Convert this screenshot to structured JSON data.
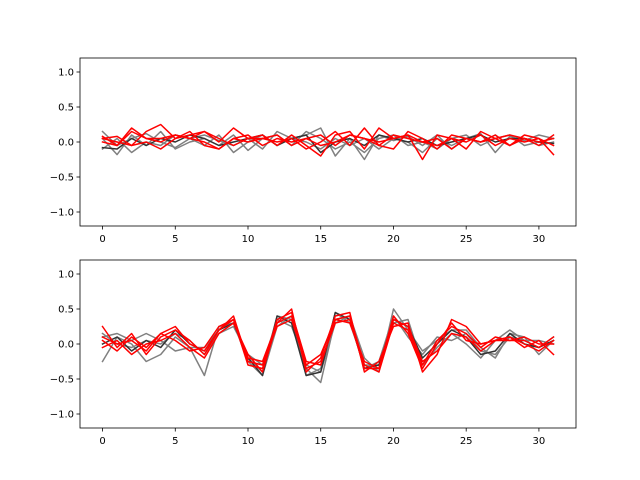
{
  "chart_data": [
    {
      "type": "line",
      "title": "",
      "xlabel": "",
      "ylabel": "",
      "xlim": [
        -1.55,
        32.55
      ],
      "ylim": [
        -1.2,
        1.2
      ],
      "xticks": [
        0,
        5,
        10,
        15,
        20,
        25,
        30
      ],
      "yticks": [
        -1.0,
        -0.5,
        0.0,
        0.5,
        1.0
      ],
      "xtick_labels": [
        "0",
        "5",
        "10",
        "15",
        "20",
        "25",
        "30"
      ],
      "ytick_labels": [
        "−1.0",
        "−0.5",
        "0.0",
        "0.5",
        "1.0"
      ],
      "grid": false,
      "x": [
        0,
        1,
        2,
        3,
        4,
        5,
        6,
        7,
        8,
        9,
        10,
        11,
        12,
        13,
        14,
        15,
        16,
        17,
        18,
        19,
        20,
        21,
        22,
        23,
        24,
        25,
        26,
        27,
        28,
        29,
        30,
        31
      ],
      "series": [
        {
          "color": "#808080",
          "values": [
            0.15,
            -0.05,
            0.05,
            0.12,
            0.0,
            -0.08,
            0.05,
            0.1,
            0.02,
            -0.05,
            0.05,
            -0.1,
            0.15,
            0.05,
            0.1,
            0.2,
            -0.2,
            0.05,
            -0.25,
            0.1,
            0.02,
            0.08,
            -0.05,
            0.1,
            -0.1,
            0.05,
            0.12,
            -0.15,
            0.08,
            0.02,
            0.1,
            0.05
          ]
        },
        {
          "color": "#808080",
          "values": [
            0.05,
            -0.18,
            0.1,
            -0.05,
            0.15,
            -0.1,
            0.0,
            0.05,
            -0.05,
            0.1,
            -0.12,
            0.05,
            0.1,
            -0.05,
            0.15,
            0.05,
            -0.1,
            0.0,
            -0.15,
            0.05,
            0.1,
            -0.05,
            0.0,
            -0.1,
            0.05,
            0.1,
            -0.05,
            0.05,
            0.1,
            -0.05,
            0.0,
            0.05
          ]
        },
        {
          "color": "#808080",
          "values": [
            -0.1,
            0.05,
            -0.15,
            0.0,
            -0.05,
            0.1,
            0.05,
            -0.05,
            0.1,
            -0.15,
            0.0,
            0.1,
            -0.05,
            0.05,
            0.0,
            -0.1,
            0.05,
            -0.05,
            0.05,
            -0.1,
            0.05,
            0.0,
            -0.15,
            0.05,
            -0.05,
            0.05,
            0.0,
            0.1,
            -0.05,
            0.05,
            -0.05,
            0.0
          ]
        },
        {
          "color": "#333333",
          "values": [
            -0.08,
            -0.1,
            0.05,
            -0.05,
            0.05,
            0.0,
            0.1,
            0.05,
            -0.05,
            0.0,
            0.05,
            0.1,
            -0.05,
            0.05,
            0.1,
            -0.15,
            0.0,
            0.05,
            -0.05,
            0.1,
            0.05,
            0.0,
            0.05,
            -0.05,
            0.0,
            0.05,
            0.1,
            0.0,
            0.05,
            0.05,
            0.0,
            -0.02
          ]
        },
        {
          "color": "#ff0000",
          "values": [
            0.05,
            0.08,
            -0.05,
            0.15,
            0.25,
            0.05,
            0.1,
            0.15,
            0.0,
            0.2,
            0.05,
            0.1,
            -0.05,
            0.1,
            -0.05,
            -0.2,
            0.1,
            0.15,
            -0.1,
            0.2,
            0.05,
            0.1,
            -0.25,
            0.1,
            0.05,
            -0.1,
            0.15,
            0.05,
            0.1,
            0.05,
            -0.05,
            0.1
          ]
        },
        {
          "color": "#ff0000",
          "values": [
            0.0,
            -0.05,
            0.15,
            0.05,
            0.0,
            0.1,
            0.05,
            0.0,
            -0.1,
            0.05,
            0.1,
            -0.05,
            0.05,
            0.0,
            0.05,
            0.1,
            -0.05,
            0.1,
            0.05,
            -0.05,
            0.1,
            0.05,
            0.0,
            0.05,
            -0.1,
            0.05,
            0.0,
            0.05,
            -0.05,
            0.1,
            0.05,
            -0.05
          ]
        },
        {
          "color": "#ff0000",
          "values": [
            0.05,
            0.0,
            -0.05,
            0.0,
            -0.1,
            0.05,
            0.15,
            -0.05,
            -0.1,
            0.05,
            0.0,
            0.05,
            0.1,
            -0.05,
            0.05,
            -0.05,
            0.0,
            0.1,
            0.05,
            0.0,
            0.05,
            0.1,
            0.0,
            -0.05,
            0.05,
            0.0,
            0.1,
            -0.05,
            0.05,
            0.0,
            0.05,
            -0.18
          ]
        },
        {
          "color": "#ff0000",
          "values": [
            0.08,
            -0.05,
            0.2,
            0.05,
            0.05,
            0.1,
            0.05,
            0.15,
            0.05,
            -0.05,
            0.05,
            0.05,
            0.0,
            0.05,
            -0.1,
            0.0,
            0.15,
            -0.05,
            0.2,
            -0.05,
            -0.1,
            0.15,
            0.05,
            -0.1,
            0.1,
            0.05,
            0.0,
            0.1,
            -0.05,
            0.05,
            0.0,
            0.05
          ]
        }
      ]
    },
    {
      "type": "line",
      "title": "",
      "xlabel": "",
      "ylabel": "",
      "xlim": [
        -1.55,
        32.55
      ],
      "ylim": [
        -1.2,
        1.2
      ],
      "xticks": [
        0,
        5,
        10,
        15,
        20,
        25,
        30
      ],
      "yticks": [
        -1.0,
        -0.5,
        0.0,
        0.5,
        1.0
      ],
      "xtick_labels": [
        "0",
        "5",
        "10",
        "15",
        "20",
        "25",
        "30"
      ],
      "ytick_labels": [
        "−1.0",
        "−0.5",
        "0.0",
        "0.5",
        "1.0"
      ],
      "grid": false,
      "x": [
        0,
        1,
        2,
        3,
        4,
        5,
        6,
        7,
        8,
        9,
        10,
        11,
        12,
        13,
        14,
        15,
        16,
        17,
        18,
        19,
        20,
        21,
        22,
        23,
        24,
        25,
        26,
        27,
        28,
        29,
        30,
        31
      ],
      "series": [
        {
          "color": "#808080",
          "values": [
            0.1,
            0.15,
            0.05,
            0.15,
            0.05,
            -0.1,
            -0.05,
            -0.45,
            0.25,
            0.3,
            -0.25,
            -0.45,
            0.25,
            0.4,
            -0.35,
            -0.55,
            0.35,
            0.4,
            -0.2,
            -0.4,
            0.5,
            0.2,
            -0.1,
            0.05,
            0.2,
            0.2,
            -0.05,
            -0.2,
            0.15,
            0.1,
            -0.15,
            0.05
          ]
        },
        {
          "color": "#808080",
          "values": [
            -0.25,
            0.1,
            0.0,
            -0.25,
            -0.15,
            0.1,
            -0.05,
            -0.05,
            0.2,
            0.3,
            -0.2,
            -0.4,
            0.4,
            0.35,
            -0.45,
            -0.35,
            0.45,
            0.3,
            -0.3,
            -0.3,
            0.3,
            0.35,
            -0.3,
            -0.05,
            0.15,
            0.0,
            -0.2,
            0.05,
            0.2,
            0.05,
            0.05,
            0.0
          ]
        },
        {
          "color": "#808080",
          "values": [
            0.15,
            0.0,
            -0.05,
            0.05,
            0.0,
            0.15,
            0.05,
            -0.15,
            0.15,
            0.25,
            -0.15,
            -0.3,
            0.35,
            0.25,
            -0.3,
            -0.4,
            0.3,
            0.4,
            -0.35,
            -0.25,
            0.4,
            0.1,
            -0.15,
            0.1,
            0.05,
            0.15,
            -0.1,
            -0.15,
            0.1,
            0.05,
            -0.05,
            0.1
          ]
        },
        {
          "color": "#333333",
          "values": [
            0.0,
            0.1,
            -0.1,
            0.05,
            -0.05,
            0.2,
            0.0,
            -0.1,
            0.2,
            0.3,
            -0.2,
            -0.45,
            0.4,
            0.3,
            -0.45,
            -0.4,
            0.45,
            0.35,
            -0.35,
            -0.3,
            0.35,
            0.25,
            -0.2,
            0.0,
            0.2,
            0.1,
            -0.15,
            -0.1,
            0.15,
            0.0,
            -0.05,
            0.05
          ]
        },
        {
          "color": "#ff0000",
          "values": [
            0.25,
            -0.05,
            0.15,
            -0.15,
            0.1,
            0.2,
            0.05,
            -0.15,
            0.2,
            0.35,
            -0.2,
            -0.25,
            0.3,
            0.5,
            -0.4,
            -0.2,
            0.4,
            0.45,
            -0.4,
            -0.25,
            0.25,
            0.3,
            -0.4,
            -0.15,
            0.35,
            0.25,
            0.0,
            0.05,
            0.1,
            0.0,
            -0.1,
            0.05
          ]
        },
        {
          "color": "#ff0000",
          "values": [
            0.05,
            -0.1,
            0.1,
            -0.05,
            0.15,
            0.05,
            -0.1,
            -0.05,
            0.25,
            0.35,
            -0.3,
            -0.35,
            0.35,
            0.45,
            -0.25,
            -0.3,
            0.35,
            0.4,
            -0.3,
            -0.4,
            0.3,
            0.2,
            -0.3,
            0.05,
            0.25,
            0.15,
            -0.05,
            0.1,
            0.05,
            0.05,
            -0.05,
            0.1
          ]
        },
        {
          "color": "#ff0000",
          "values": [
            -0.05,
            0.05,
            -0.15,
            0.0,
            0.05,
            0.15,
            -0.05,
            -0.2,
            0.15,
            0.3,
            -0.15,
            -0.4,
            0.3,
            0.4,
            -0.35,
            -0.25,
            0.3,
            0.35,
            -0.35,
            -0.35,
            0.35,
            0.25,
            -0.25,
            -0.1,
            0.15,
            0.1,
            -0.1,
            0.05,
            0.1,
            -0.05,
            0.05,
            -0.15
          ]
        },
        {
          "color": "#ff0000",
          "values": [
            0.1,
            0.0,
            0.05,
            -0.1,
            0.15,
            0.25,
            0.0,
            -0.1,
            0.2,
            0.4,
            -0.25,
            -0.3,
            0.25,
            0.35,
            -0.3,
            -0.15,
            0.35,
            0.3,
            -0.25,
            -0.35,
            0.4,
            0.15,
            -0.35,
            0.0,
            0.3,
            0.05,
            0.0,
            0.05,
            0.05,
            0.1,
            0.0,
            0.0
          ]
        }
      ]
    }
  ]
}
